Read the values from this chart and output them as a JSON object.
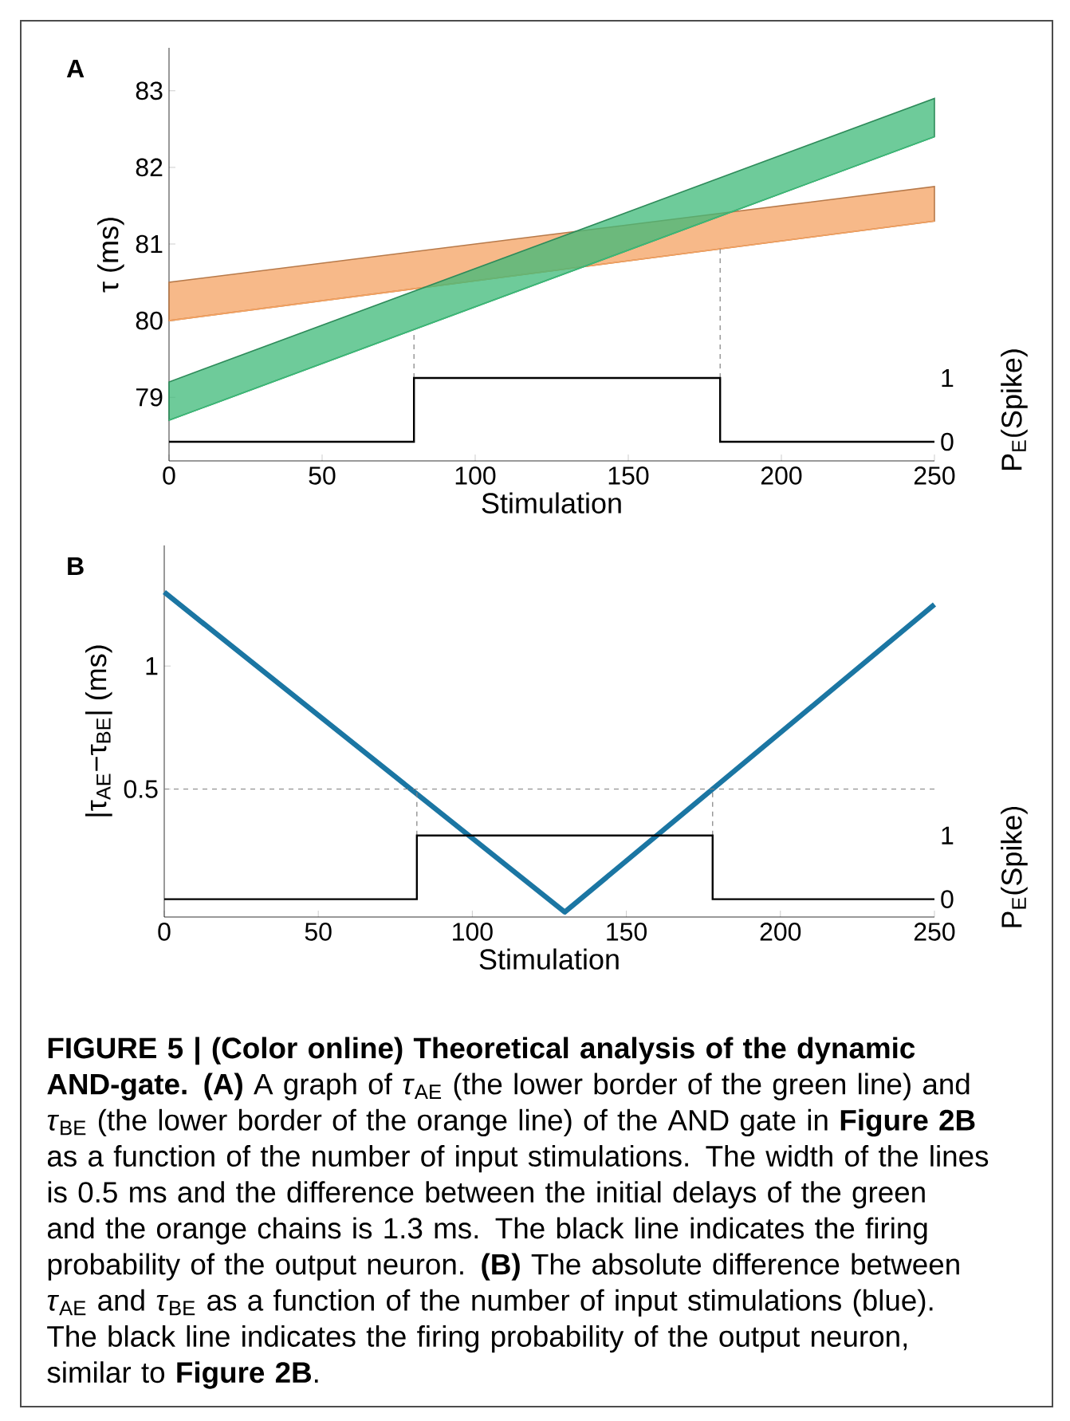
{
  "chart_data": [
    {
      "type": "line",
      "title": "A",
      "xlabel": "Stimulation",
      "ylabel": "τ (ms)",
      "y2label": "P$_{E}$(Spike)",
      "xlim": [
        0,
        250
      ],
      "xticks": [
        0,
        50,
        100,
        150,
        200,
        250
      ],
      "ylim": [
        78.17,
        83.56
      ],
      "yticks": [
        79,
        80,
        81,
        82,
        83
      ],
      "y2lim": [
        -0.3,
        6.18
      ],
      "y2ticks": [
        0,
        1
      ],
      "series": [
        {
          "type": "line",
          "color": "#f4a261",
          "x": [
            0,
            250
          ],
          "values": [
            80.0,
            81.3
          ],
          "lower": [
            80.0,
            81.3
          ],
          "upper": [
            80.5,
            81.75
          ]
        },
        {
          "type": "line",
          "color": "#3dba78",
          "x": [
            0,
            250
          ],
          "values": [
            78.7,
            82.4
          ],
          "lower": [
            78.7,
            82.4
          ],
          "upper": [
            79.2,
            82.9
          ]
        },
        {
          "type": "step",
          "axis": "y2",
          "color": "#000000",
          "x": [
            0,
            80,
            180,
            250
          ],
          "values": [
            0,
            1,
            0,
            0
          ]
        }
      ],
      "ref_lines": [
        {
          "axis": "x",
          "value": 80,
          "color": "#808080",
          "line_style": "dashed"
        },
        {
          "axis": "x",
          "value": 180,
          "color": "#808080",
          "line_style": "dashed"
        }
      ]
    },
    {
      "type": "line",
      "title": "B",
      "xlabel": "Stimulation",
      "ylabel": "|τ$_{AE}$−τ$_{BE}$| (ms)",
      "y2label": "P$_{E}$(Spike)",
      "xlim": [
        0,
        250
      ],
      "xticks": [
        0,
        50,
        100,
        150,
        200,
        250
      ],
      "ylim": [
        -0.02,
        1.49
      ],
      "yticks": [
        0.5,
        1
      ],
      "y2lim": [
        -0.28,
        5.55
      ],
      "y2ticks": [
        0,
        1
      ],
      "series": [
        {
          "type": "step",
          "axis": "y2",
          "color": "#000000",
          "x": [
            0,
            82,
            178,
            250
          ],
          "values": [
            0,
            1,
            0,
            0
          ]
        },
        {
          "type": "line",
          "color": "#1b76a3",
          "x": [
            0,
            130,
            250
          ],
          "values": [
            1.3,
            0,
            1.25
          ]
        }
      ],
      "ref_lines": [
        {
          "axis": "y",
          "value": 0.5,
          "color": "#808080",
          "line_style": "dashed"
        },
        {
          "axis": "x",
          "value": 82,
          "color": "#808080",
          "line_style": "dashed"
        },
        {
          "axis": "x",
          "value": 178,
          "color": "#808080",
          "line_style": "dashed"
        }
      ],
      "annotations": [
        "**FIGURE 5 | (Color online) Theoretical analysis of the dynamic AND-gate. (A)** A graph of *τ*$_{AE}$ (the lower border of the green line) and *τ*$_{BE}$ (the lower border of the orange line) of the AND gate in **Figure 2B** as a function of the number of input stimulations. The width of the lines is 0.5 ms and the difference between the initial delays of the green and the orange chains is 1.3 ms. The black line indicates the firing probability of the output neuron. **(B)** The absolute difference between *τ*$_{AE}$ and *τ*$_{BE}$ as a function of the number of input stimulations (blue). The black line indicates the firing probability of the output neuron, similar to **Figure 2B**."
      ]
    }
  ]
}
